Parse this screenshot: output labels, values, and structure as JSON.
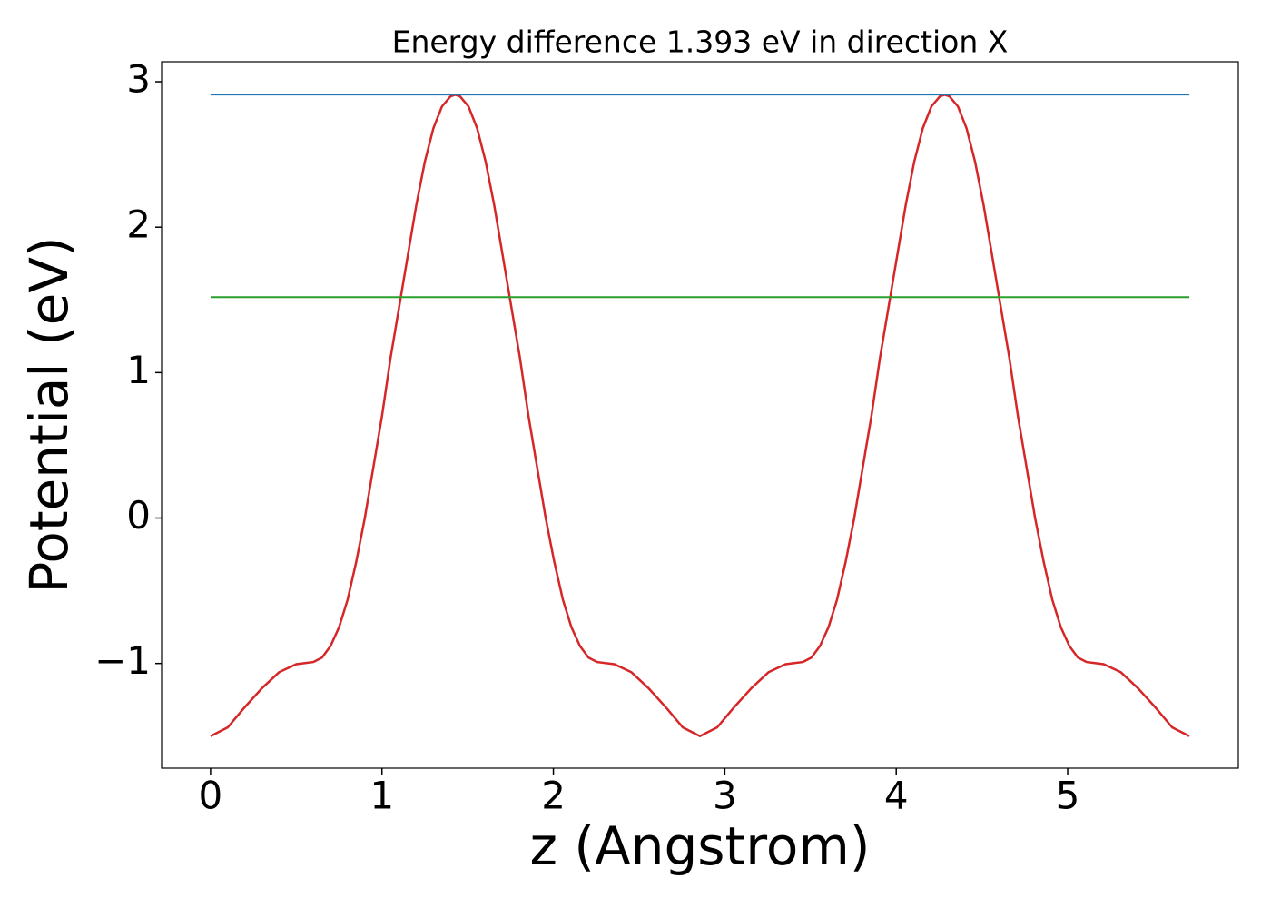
{
  "chart_data": {
    "type": "line",
    "title": "Energy difference 1.393 eV in direction X",
    "xlabel": "z (Angstrom)",
    "ylabel": "Potential (eV)",
    "xlim": [
      -0.2855,
      5.9955
    ],
    "ylim": [
      -1.72,
      3.1375
    ],
    "xticks": [
      0,
      1,
      2,
      3,
      4,
      5
    ],
    "yticks": [
      {
        "value": -1,
        "label": "−1"
      },
      0,
      1,
      2,
      3
    ],
    "grid": false,
    "series": [
      {
        "color": "#d62728",
        "x": [
          0,
          0.1,
          0.2,
          0.3,
          0.4,
          0.5,
          0.6,
          0.65,
          0.7,
          0.75,
          0.8,
          0.85,
          0.9,
          0.95,
          1.0,
          1.05,
          1.1,
          1.15,
          1.2,
          1.25,
          1.3,
          1.35,
          1.4,
          1.428,
          1.455,
          1.505,
          1.555,
          1.605,
          1.655,
          1.705,
          1.755,
          1.805,
          1.855,
          1.905,
          1.955,
          2.005,
          2.055,
          2.105,
          2.155,
          2.205,
          2.255,
          2.355,
          2.455,
          2.555,
          2.655,
          2.755,
          2.855,
          2.955,
          3.055,
          3.155,
          3.255,
          3.355,
          3.455,
          3.505,
          3.555,
          3.605,
          3.655,
          3.705,
          3.755,
          3.805,
          3.855,
          3.905,
          3.955,
          4.005,
          4.055,
          4.105,
          4.155,
          4.205,
          4.255,
          4.283,
          4.31,
          4.36,
          4.41,
          4.46,
          4.51,
          4.56,
          4.61,
          4.66,
          4.71,
          4.76,
          4.81,
          4.86,
          4.91,
          4.96,
          5.01,
          5.06,
          5.11,
          5.21,
          5.31,
          5.41,
          5.51,
          5.61,
          5.71
        ],
        "values": [
          -1.5,
          -1.44,
          -1.3,
          -1.17,
          -1.06,
          -1.005,
          -0.99,
          -0.96,
          -0.88,
          -0.75,
          -0.56,
          -0.3,
          0.0,
          0.35,
          0.7,
          1.1,
          1.45,
          1.8,
          2.15,
          2.45,
          2.68,
          2.83,
          2.9,
          2.91,
          2.9,
          2.83,
          2.68,
          2.45,
          2.15,
          1.8,
          1.45,
          1.1,
          0.7,
          0.35,
          0.0,
          -0.3,
          -0.56,
          -0.75,
          -0.88,
          -0.96,
          -0.99,
          -1.005,
          -1.06,
          -1.17,
          -1.3,
          -1.44,
          -1.5,
          -1.44,
          -1.3,
          -1.17,
          -1.06,
          -1.005,
          -0.99,
          -0.96,
          -0.88,
          -0.75,
          -0.56,
          -0.3,
          0.0,
          0.35,
          0.7,
          1.1,
          1.45,
          1.8,
          2.15,
          2.45,
          2.68,
          2.83,
          2.9,
          2.91,
          2.9,
          2.83,
          2.68,
          2.45,
          2.15,
          1.8,
          1.45,
          1.1,
          0.7,
          0.35,
          0.0,
          -0.3,
          -0.56,
          -0.75,
          -0.88,
          -0.96,
          -0.99,
          -1.005,
          -1.06,
          -1.17,
          -1.3,
          -1.44,
          -1.5
        ]
      },
      {
        "color": "#1f77b4",
        "x": [
          0,
          5.71
        ],
        "values": [
          2.912,
          2.912
        ]
      },
      {
        "color": "#2ca02c",
        "x": [
          0,
          5.71
        ],
        "values": [
          1.519,
          1.519
        ]
      }
    ]
  }
}
